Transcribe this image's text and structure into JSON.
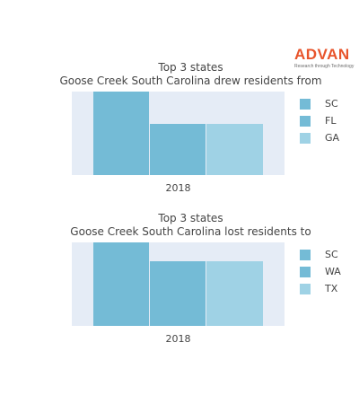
{
  "logo": {
    "text": "ADVAN",
    "tagline": "Research through Technology",
    "color": "#e8542b"
  },
  "chart_data": [
    {
      "type": "bar",
      "title": "Top 3 states",
      "subtitle": "Goose Creek South Carolina drew residents from",
      "categories": [
        "2018"
      ],
      "series": [
        {
          "name": "SC",
          "values": [
            1.0
          ],
          "color": "#74bbd6"
        },
        {
          "name": "FL",
          "values": [
            0.61
          ],
          "color": "#74bbd6"
        },
        {
          "name": "GA",
          "values": [
            0.61
          ],
          "color": "#9fd2e5"
        }
      ],
      "ylim": [
        0,
        1.0
      ],
      "legend_position": "right",
      "grid": true
    },
    {
      "type": "bar",
      "title": "Top 3 states",
      "subtitle": "Goose Creek South Carolina lost residents to",
      "categories": [
        "2018"
      ],
      "series": [
        {
          "name": "SC",
          "values": [
            1.0
          ],
          "color": "#74bbd6"
        },
        {
          "name": "WA",
          "values": [
            0.77
          ],
          "color": "#74bbd6"
        },
        {
          "name": "TX",
          "values": [
            0.77
          ],
          "color": "#9fd2e5"
        }
      ],
      "ylim": [
        0,
        1.0
      ],
      "legend_position": "right",
      "grid": true
    }
  ]
}
